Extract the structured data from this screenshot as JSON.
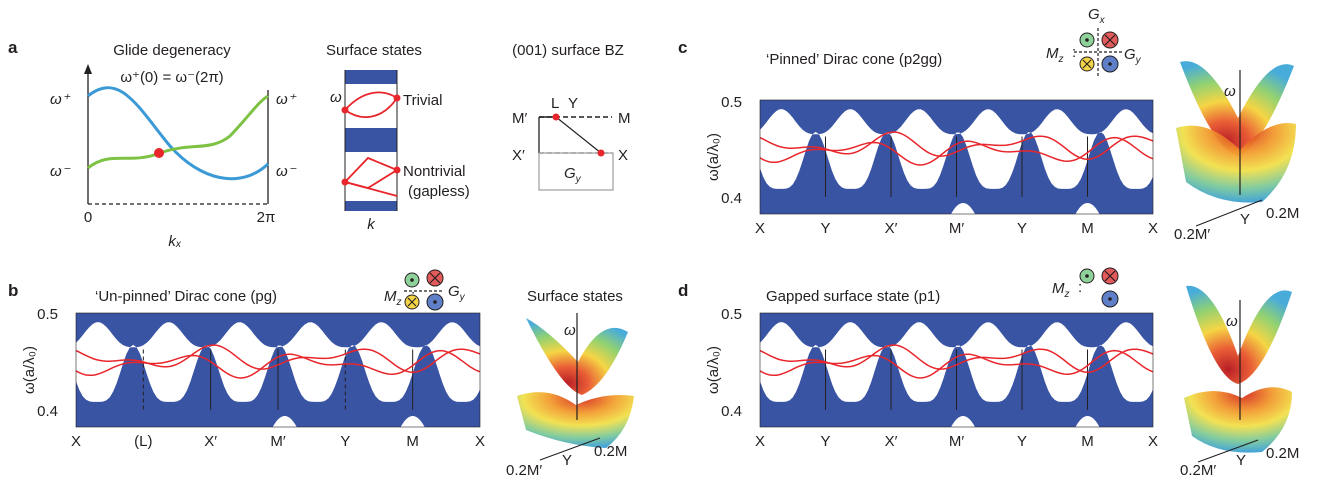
{
  "colors": {
    "band_blue": "#3a54a4",
    "surface_red": "#e8262b",
    "blue_curve": "#3b9ad6",
    "green_curve": "#7dc242",
    "ink": "#231f20",
    "axis_gray": "#9d9d9d"
  },
  "panel_a": {
    "letter": "a",
    "glide": {
      "title": "Glide degeneracy",
      "equation": "ω⁺(0) = ω⁻(2π)",
      "omega_plus_left": "ω⁺",
      "omega_minus_left": "ω⁻",
      "omega_plus_right": "ω⁺",
      "omega_minus_right": "ω⁻",
      "x_start": "0",
      "x_end": "2π",
      "xlabel": "kₓ"
    },
    "surface_states": {
      "title": "Surface states",
      "omega": "ω",
      "trivial": "Trivial",
      "nontrivial": "Nontrivial",
      "gapless": "(gapless)",
      "xlabel": "k"
    },
    "bz": {
      "title": "(001) surface BZ",
      "L": "L",
      "Y": "Y",
      "M_prime": "M′",
      "M": "M",
      "X_prime": "X′",
      "X": "X",
      "Gy": "G",
      "Gy_sub": "y"
    }
  },
  "panel_b": {
    "letter": "b",
    "title": "‘Un-pinned’ Dirac cone (pg)",
    "Mz": "M",
    "Mz_sub": "z",
    "Gy": "G",
    "Gy_sub": "y",
    "side_title": "Surface states",
    "cone_omega": "ω",
    "cone_M": "0.2M",
    "cone_Y": "Y",
    "cone_Mp": "0.2M′"
  },
  "panel_c": {
    "letter": "c",
    "title": "‘Pinned’ Dirac cone (p2gg)",
    "Mz": "M",
    "Mz_sub": "z",
    "Gx": "G",
    "Gx_sub": "x",
    "Gy": "G",
    "Gy_sub": "y",
    "cone_omega": "ω",
    "cone_M": "0.2M",
    "cone_Y": "Y",
    "cone_Mp": "0.2M′"
  },
  "panel_d": {
    "letter": "d",
    "title": "Gapped surface state (p1)",
    "Mz": "M",
    "Mz_sub": "z",
    "cone_omega": "ω",
    "cone_M": "0.2M",
    "cone_Y": "Y",
    "cone_Mp": "0.2M′"
  },
  "band_plots": {
    "ylabel": "ω(a/λ₀)",
    "ytick_top": "0.5",
    "ytick_bottom": "0.4",
    "ylim": [
      0.35,
      0.5
    ],
    "b_xticks": [
      "X",
      "(L)",
      "X′",
      "M′",
      "Y",
      "M",
      "X"
    ],
    "c_xticks": [
      "X",
      "Y",
      "X′",
      "M′",
      "Y",
      "M",
      "X"
    ],
    "d_xticks": [
      "X",
      "Y",
      "X′",
      "M′",
      "Y",
      "M",
      "X"
    ]
  }
}
